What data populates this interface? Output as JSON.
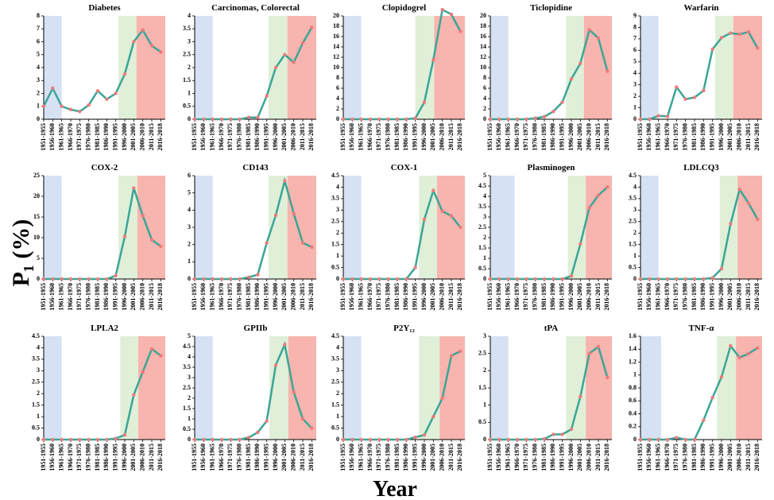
{
  "ylabel": "P₁ (%)",
  "xlabel": "Year",
  "chart_data": [
    {
      "type": "line",
      "title": "Diabetes",
      "categories": [
        "1951-1955",
        "1956-1960",
        "1961-1965",
        "1966-1970",
        "1971-1975",
        "1976-1980",
        "1981-1985",
        "1986-1990",
        "1991-1995",
        "1996-2000",
        "2001-2005",
        "2006-2010",
        "2011-2015",
        "2016-2018"
      ],
      "values": [
        1.0,
        2.4,
        1.0,
        0.75,
        0.6,
        1.1,
        2.2,
        1.55,
        2.0,
        3.5,
        6.0,
        6.9,
        5.7,
        5.2
      ],
      "color": "#3aa596",
      "marker_color": "#f07a7a",
      "ylim": [
        0,
        8
      ],
      "yticks": [
        0,
        1,
        2,
        3,
        4,
        5,
        6,
        7,
        8
      ],
      "bands": [
        {
          "from": 0,
          "to": 2,
          "color": "#d6e2f3"
        },
        {
          "from": 8.3,
          "to": 10.3,
          "color": "#e0efd8"
        },
        {
          "from": 10.3,
          "to": 13.5,
          "color": "#f8b4ae"
        }
      ]
    },
    {
      "type": "line",
      "title": "Carcinomas, Colorectal",
      "categories": [
        "1951-1955",
        "1956-1960",
        "1961-1965",
        "1966-1970",
        "1971-1975",
        "1976-1980",
        "1981-1985",
        "1986-1990",
        "1991-1995",
        "1996-2000",
        "2001-2005",
        "2006-2010",
        "2011-2015",
        "2016-2018"
      ],
      "values": [
        0,
        0,
        0,
        0,
        0,
        0,
        0.07,
        0.07,
        0.9,
        2.0,
        2.5,
        2.2,
        2.95,
        3.55
      ],
      "color": "#3aa596",
      "marker_color": "#f07a7a",
      "ylim": [
        0,
        4
      ],
      "yticks": [
        0,
        0.5,
        1,
        1.5,
        2,
        2.5,
        3,
        3.5,
        4
      ],
      "bands": [
        {
          "from": 0,
          "to": 2,
          "color": "#d6e2f3"
        },
        {
          "from": 8.2,
          "to": 10.3,
          "color": "#e0efd8"
        },
        {
          "from": 10.3,
          "to": 13.5,
          "color": "#f8b4ae"
        }
      ]
    },
    {
      "type": "line",
      "title": "Clopidogrel",
      "categories": [
        "1951-1955",
        "1956-1960",
        "1961-1965",
        "1966-1970",
        "1971-1975",
        "1976-1980",
        "1981-1985",
        "1986-1990",
        "1991-1995",
        "1996-2000",
        "2001-2005",
        "2006-2010",
        "2011-2015",
        "2016-2018"
      ],
      "values": [
        0,
        0,
        0,
        0,
        0,
        0,
        0,
        0,
        0.2,
        3.3,
        11.5,
        21.2,
        20.3,
        17
      ],
      "color": "#3aa596",
      "marker_color": "#f07a7a",
      "ylim": [
        0,
        20
      ],
      "yticks": [
        0,
        2,
        4,
        6,
        8,
        10,
        12,
        14,
        16,
        18,
        20
      ],
      "bands": [
        {
          "from": 0,
          "to": 2,
          "color": "#d6e2f3"
        },
        {
          "from": 8.0,
          "to": 10.1,
          "color": "#e0efd8"
        },
        {
          "from": 10.1,
          "to": 13.5,
          "color": "#f8b4ae"
        }
      ]
    },
    {
      "type": "line",
      "title": "Ticlopidine",
      "categories": [
        "1951-1955",
        "1956-1960",
        "1961-1965",
        "1966-1970",
        "1971-1975",
        "1976-1980",
        "1981-1985",
        "1986-1990",
        "1991-1995",
        "1996-2000",
        "2001-2005",
        "2006-2010",
        "2011-2015",
        "2016-2018"
      ],
      "values": [
        0,
        0,
        0,
        0,
        0,
        0.2,
        0.5,
        1.5,
        3.3,
        7.8,
        10.8,
        17.3,
        15.7,
        9.3
      ],
      "color": "#3aa596",
      "marker_color": "#f07a7a",
      "ylim": [
        0,
        20
      ],
      "yticks": [
        0,
        2,
        4,
        6,
        8,
        10,
        12,
        14,
        16,
        18,
        20
      ],
      "bands": [
        {
          "from": 0,
          "to": 2,
          "color": "#d6e2f3"
        },
        {
          "from": 8.4,
          "to": 10.4,
          "color": "#e0efd8"
        },
        {
          "from": 10.4,
          "to": 13.5,
          "color": "#f8b4ae"
        }
      ]
    },
    {
      "type": "line",
      "title": "Warfarin",
      "categories": [
        "1951-1955",
        "1956-1960",
        "1961-1965",
        "1966-1970",
        "1971-1975",
        "1976-1980",
        "1981-1985",
        "1986-1990",
        "1991-1995",
        "1996-2000",
        "2001-2005",
        "2006-2010",
        "2011-2015",
        "2016-2018"
      ],
      "values": [
        0,
        0,
        0.3,
        0.25,
        2.8,
        1.75,
        1.9,
        2.5,
        6.1,
        7.1,
        7.5,
        7.4,
        7.6,
        6.2
      ],
      "color": "#3aa596",
      "marker_color": "#f07a7a",
      "ylim": [
        0,
        9
      ],
      "yticks": [
        0,
        1,
        2,
        3,
        4,
        5,
        6,
        7,
        8,
        9
      ],
      "bands": [
        {
          "from": 0,
          "to": 2,
          "color": "#d6e2f3"
        },
        {
          "from": 8.3,
          "to": 10.3,
          "color": "#e0efd8"
        },
        {
          "from": 10.3,
          "to": 13.5,
          "color": "#f8b4ae"
        }
      ]
    },
    {
      "type": "line",
      "title": "COX-2",
      "categories": [
        "1951-1955",
        "1956-1960",
        "1961-1965",
        "1966-1970",
        "1971-1975",
        "1976-1980",
        "1981-1985",
        "1986-1990",
        "1991-1995",
        "1996-2000",
        "2001-2005",
        "2006-2010",
        "2011-2015",
        "2016-2018"
      ],
      "values": [
        0,
        0,
        0,
        0,
        0,
        0,
        0,
        0,
        0.8,
        10.3,
        22,
        15.3,
        9.5,
        7.9
      ],
      "color": "#3aa596",
      "marker_color": "#f07a7a",
      "ylim": [
        0,
        25
      ],
      "yticks": [
        0,
        5,
        10,
        15,
        20,
        25
      ],
      "bands": [
        {
          "from": 0,
          "to": 2,
          "color": "#d6e2f3"
        },
        {
          "from": 8.3,
          "to": 10.4,
          "color": "#e0efd8"
        },
        {
          "from": 10.4,
          "to": 13.5,
          "color": "#f8b4ae"
        }
      ]
    },
    {
      "type": "line",
      "title": "CD143",
      "categories": [
        "1951-1955",
        "1956-1960",
        "1961-1965",
        "1966-1970",
        "1971-1975",
        "1976-1980",
        "1981-1985",
        "1986-1990",
        "1991-1995",
        "1996-2000",
        "2001-2005",
        "2006-2010",
        "2011-2015",
        "2016-2018"
      ],
      "values": [
        0,
        0,
        0,
        0,
        0,
        0,
        0.1,
        0.25,
        2.1,
        3.7,
        5.7,
        3.8,
        2.1,
        1.85
      ],
      "color": "#3aa596",
      "marker_color": "#f07a7a",
      "ylim": [
        0,
        6
      ],
      "yticks": [
        0,
        1,
        2,
        3,
        4,
        5,
        6
      ],
      "bands": [
        {
          "from": 0,
          "to": 2,
          "color": "#d6e2f3"
        },
        {
          "from": 8.2,
          "to": 10.3,
          "color": "#e0efd8"
        },
        {
          "from": 10.3,
          "to": 13.5,
          "color": "#f8b4ae"
        }
      ]
    },
    {
      "type": "line",
      "title": "COX-1",
      "categories": [
        "1951-1955",
        "1956-1960",
        "1961-1965",
        "1966-1970",
        "1971-1975",
        "1976-1980",
        "1981-1985",
        "1986-1990",
        "1991-1995",
        "1996-2000",
        "2001-2005",
        "2006-2010",
        "2011-2015",
        "2016-2018"
      ],
      "values": [
        0,
        0,
        0,
        0,
        0,
        0,
        0,
        0,
        0.5,
        2.6,
        3.85,
        2.95,
        2.75,
        2.25
      ],
      "color": "#3aa596",
      "marker_color": "#f07a7a",
      "ylim": [
        0,
        4.5
      ],
      "yticks": [
        0,
        0.5,
        1,
        1.5,
        2,
        2.5,
        3,
        3.5,
        4,
        4.5
      ],
      "bands": [
        {
          "from": 0,
          "to": 2,
          "color": "#d6e2f3"
        },
        {
          "from": 8.4,
          "to": 10.4,
          "color": "#e0efd8"
        },
        {
          "from": 10.4,
          "to": 13.5,
          "color": "#f8b4ae"
        }
      ]
    },
    {
      "type": "line",
      "title": "Plasminogen",
      "categories": [
        "1951-1955",
        "1956-1960",
        "1961-1965",
        "1966-1970",
        "1971-1975",
        "1976-1980",
        "1981-1985",
        "1986-1990",
        "1991-1995",
        "1996-2000",
        "2001-2005",
        "2006-2010",
        "2011-2015",
        "2016-2018"
      ],
      "values": [
        0,
        0,
        0,
        0,
        0,
        0,
        0,
        0,
        0,
        0.15,
        1.7,
        3.45,
        4.05,
        4.45
      ],
      "color": "#3aa596",
      "marker_color": "#f07a7a",
      "ylim": [
        0,
        5
      ],
      "yticks": [
        0,
        0.5,
        1,
        1.5,
        2,
        2.5,
        3,
        3.5,
        4,
        4.5,
        5
      ],
      "bands": [
        {
          "from": 0,
          "to": 2.7,
          "color": "#d6e2f3"
        },
        {
          "from": 8.6,
          "to": 10.6,
          "color": "#e0efd8"
        },
        {
          "from": 10.6,
          "to": 13.5,
          "color": "#f8b4ae"
        }
      ]
    },
    {
      "type": "line",
      "title": "LDLCQ3",
      "categories": [
        "1951-1955",
        "1956-1960",
        "1961-1965",
        "1966-1970",
        "1971-1975",
        "1976-1980",
        "1981-1985",
        "1986-1990",
        "1991-1995",
        "1996-2000",
        "2001-2005",
        "2006-2010",
        "2011-2015",
        "2016-2018"
      ],
      "values": [
        0,
        0,
        0,
        0,
        0,
        0,
        0,
        0,
        0.05,
        0.45,
        2.4,
        3.9,
        3.3,
        2.6
      ],
      "color": "#3aa596",
      "marker_color": "#f07a7a",
      "ylim": [
        0,
        4.5
      ],
      "yticks": [
        0,
        0.5,
        1,
        1.5,
        2,
        2.5,
        3,
        3.5,
        4,
        4.5
      ],
      "bands": [
        {
          "from": 0,
          "to": 2,
          "color": "#d6e2f3"
        },
        {
          "from": 8.8,
          "to": 10.8,
          "color": "#e0efd8"
        },
        {
          "from": 10.8,
          "to": 13.5,
          "color": "#f8b4ae"
        }
      ]
    },
    {
      "type": "line",
      "title": "LPLA2",
      "categories": [
        "1951-1955",
        "1956-1960",
        "1961-1965",
        "1966-1970",
        "1971-1975",
        "1976-1980",
        "1981-1985",
        "1986-1990",
        "1991-1995",
        "1996-2000",
        "2001-2005",
        "2006-2010",
        "2011-2015",
        "2016-2018"
      ],
      "values": [
        0,
        0,
        0,
        0,
        0,
        0,
        0,
        0,
        0.05,
        0.2,
        1.95,
        2.95,
        3.95,
        3.65
      ],
      "color": "#3aa596",
      "marker_color": "#f07a7a",
      "ylim": [
        0,
        4.5
      ],
      "yticks": [
        0,
        0.5,
        1,
        1.5,
        2,
        2.5,
        3,
        3.5,
        4,
        4.5
      ],
      "bands": [
        {
          "from": 0,
          "to": 2,
          "color": "#d6e2f3"
        },
        {
          "from": 8.5,
          "to": 10.5,
          "color": "#e0efd8"
        },
        {
          "from": 10.5,
          "to": 13.5,
          "color": "#f8b4ae"
        }
      ]
    },
    {
      "type": "line",
      "title": "GPIIb",
      "categories": [
        "1951-1955",
        "1956-1960",
        "1961-1965",
        "1966-1970",
        "1971-1975",
        "1976-1980",
        "1981-1985",
        "1986-1990",
        "1991-1995",
        "1996-2000",
        "2001-2005",
        "2006-2010",
        "2011-2015",
        "2016-2018"
      ],
      "values": [
        0,
        0,
        0,
        0,
        0,
        0,
        0.1,
        0.35,
        0.9,
        3.6,
        4.6,
        2.3,
        1.0,
        0.55
      ],
      "color": "#3aa596",
      "marker_color": "#f07a7a",
      "ylim": [
        0,
        5
      ],
      "yticks": [
        0,
        0.5,
        1,
        1.5,
        2,
        2.5,
        3,
        3.5,
        4,
        4.5,
        5
      ],
      "bands": [
        {
          "from": 0,
          "to": 2,
          "color": "#d6e2f3"
        },
        {
          "from": 8.3,
          "to": 10.4,
          "color": "#e0efd8"
        },
        {
          "from": 10.4,
          "to": 13.5,
          "color": "#f8b4ae"
        }
      ]
    },
    {
      "type": "line",
      "title": "P2Y₁₂",
      "categories": [
        "1951-1955",
        "1956-1960",
        "1961-1965",
        "1966-1970",
        "1971-1975",
        "1976-1980",
        "1981-1985",
        "1986-1990",
        "1991-1995",
        "1996-2000",
        "2001-2005",
        "2006-2010",
        "2011-2015",
        "2016-2018"
      ],
      "values": [
        0,
        0,
        0,
        0,
        0,
        0,
        0,
        0,
        0.1,
        0.2,
        1.0,
        1.8,
        3.65,
        3.85
      ],
      "color": "#3aa596",
      "marker_color": "#f07a7a",
      "ylim": [
        0,
        4.5
      ],
      "yticks": [
        0,
        0.5,
        1,
        1.5,
        2,
        2.5,
        3,
        3.5,
        4,
        4.5
      ],
      "bands": [
        {
          "from": 0,
          "to": 2,
          "color": "#d6e2f3"
        },
        {
          "from": 8.4,
          "to": 10.7,
          "color": "#e0efd8"
        },
        {
          "from": 10.7,
          "to": 13.5,
          "color": "#f8b4ae"
        }
      ]
    },
    {
      "type": "line",
      "title": "tPA",
      "categories": [
        "1951-1955",
        "1956-1960",
        "1961-1965",
        "1966-1970",
        "1971-1975",
        "1976-1980",
        "1981-1985",
        "1986-1990",
        "1991-1995",
        "1996-2000",
        "2001-2005",
        "2006-2010",
        "2011-2015",
        "2016-2018"
      ],
      "values": [
        0,
        0,
        0,
        0,
        0,
        0,
        0.02,
        0.15,
        0.15,
        0.3,
        1.25,
        2.5,
        2.7,
        1.8
      ],
      "color": "#3aa596",
      "marker_color": "#f07a7a",
      "ylim": [
        0,
        3
      ],
      "yticks": [
        0,
        0.5,
        1,
        1.5,
        2,
        2.5,
        3
      ],
      "bands": [
        {
          "from": 0,
          "to": 2,
          "color": "#d6e2f3"
        },
        {
          "from": 8.4,
          "to": 10.6,
          "color": "#e0efd8"
        },
        {
          "from": 10.6,
          "to": 13.5,
          "color": "#f8b4ae"
        }
      ]
    },
    {
      "type": "line",
      "title": "TNF-α",
      "categories": [
        "1951-1955",
        "1956-1960",
        "1961-1965",
        "1966-1970",
        "1971-1975",
        "1976-1980",
        "1981-1985",
        "1986-1990",
        "1991-1995",
        "1996-2000",
        "2001-2005",
        "2006-2010",
        "2011-2015",
        "2016-2018"
      ],
      "values": [
        0,
        0,
        0,
        0,
        0.03,
        0,
        0,
        0.3,
        0.65,
        0.97,
        1.45,
        1.27,
        1.33,
        1.42
      ],
      "color": "#3aa596",
      "marker_color": "#f07a7a",
      "ylim": [
        0,
        1.6
      ],
      "yticks": [
        0,
        0.2,
        0.4,
        0.6,
        0.8,
        1,
        1.2,
        1.4,
        1.6
      ],
      "bands": [
        {
          "from": 0,
          "to": 2.3,
          "color": "#d6e2f3"
        },
        {
          "from": 8.5,
          "to": 10.6,
          "color": "#e0efd8"
        },
        {
          "from": 10.6,
          "to": 13.5,
          "color": "#f8b4ae"
        }
      ]
    }
  ]
}
